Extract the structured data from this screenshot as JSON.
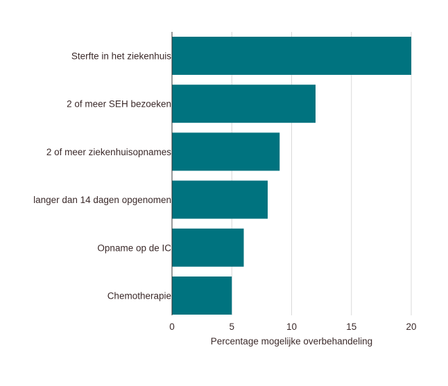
{
  "chart_data": {
    "type": "bar",
    "orientation": "horizontal",
    "categories": [
      "Sterfte in het ziekenhuis",
      "2 of meer SEH bezoeken",
      "2 of meer ziekenhuisopnames",
      "langer dan 14 dagen opgenomen",
      "Opname op de IC",
      "Chemotherapie"
    ],
    "values": [
      20,
      12,
      9,
      8,
      6,
      5
    ],
    "xlabel": "Percentage mogelijke overbehandeling",
    "ylabel": "",
    "xlim": [
      0,
      20
    ],
    "xticks": [
      "0",
      "5",
      "10",
      "15",
      "20"
    ],
    "grid": "vertical",
    "bar_color": "#00737f",
    "grid_color": "#d9d9d9",
    "text_color": "#3b2a2a"
  }
}
